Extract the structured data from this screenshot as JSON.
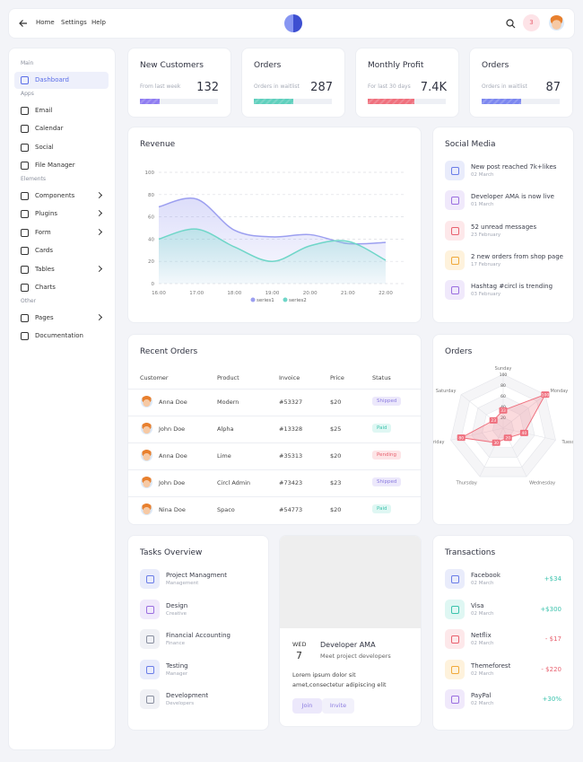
{
  "nav": {
    "links": [
      "Home",
      "Settings",
      "Help"
    ],
    "badge": "3"
  },
  "sidebar": {
    "sections": [
      {
        "heading": "Main",
        "items": [
          {
            "label": "Dashboard",
            "active": true
          }
        ]
      },
      {
        "heading": "Apps",
        "items": [
          {
            "label": "Email"
          },
          {
            "label": "Calendar"
          },
          {
            "label": "Social"
          },
          {
            "label": "File Manager"
          }
        ]
      },
      {
        "heading": "Elements",
        "items": [
          {
            "label": "Components",
            "submenu": true
          },
          {
            "label": "Plugins",
            "submenu": true
          },
          {
            "label": "Form",
            "submenu": true
          },
          {
            "label": "Cards"
          },
          {
            "label": "Tables",
            "submenu": true
          },
          {
            "label": "Charts"
          }
        ]
      },
      {
        "heading": "Other",
        "items": [
          {
            "label": "Pages",
            "submenu": true
          },
          {
            "label": "Documentation"
          }
        ]
      }
    ]
  },
  "stats": [
    {
      "title": "New Customers",
      "caption": "From last week",
      "value": "132",
      "progress": 25,
      "color": "#8f7cf2"
    },
    {
      "title": "Orders",
      "caption": "Orders in waitlist",
      "value": "287",
      "progress": 50,
      "color": "#5fd0bd"
    },
    {
      "title": "Monthly Profit",
      "caption": "For last 30 days",
      "value": "7.4K",
      "progress": 60,
      "color": "#f0707d"
    },
    {
      "title": "Orders",
      "caption": "Orders in waitlist",
      "value": "87",
      "progress": 50,
      "color": "#7c87f0"
    }
  ],
  "chart_data": [
    {
      "type": "area",
      "title": "Revenue",
      "x": [
        "16:00",
        "17:00",
        "18:00",
        "19:00",
        "20:00",
        "21:00",
        "22:00"
      ],
      "series": [
        {
          "name": "series1",
          "color": "#9c9ff0",
          "values": [
            69,
            76,
            48,
            42,
            44,
            36,
            37
          ]
        },
        {
          "name": "series2",
          "color": "#6fd6c8",
          "values": [
            40,
            49,
            33,
            20,
            34,
            38,
            21
          ]
        }
      ],
      "ylim": [
        0,
        100
      ],
      "yticks": [
        0,
        20,
        40,
        60,
        80,
        100
      ],
      "grid": true
    },
    {
      "type": "radar",
      "title": "Orders",
      "categories": [
        "Sunday",
        "Monday",
        "Tuesday",
        "Wednesday",
        "Thursday",
        "Friday",
        "Saturday"
      ],
      "values": [
        33,
        100,
        40,
        20,
        30,
        80,
        23
      ],
      "rlim": [
        0,
        100
      ],
      "rticks": [
        20,
        40,
        60,
        80,
        100
      ],
      "color": "#ef6f7d"
    }
  ],
  "social": {
    "title": "Social Media",
    "items": [
      {
        "text": "New post reached 7k+likes",
        "date": "02 March",
        "color": "#6b7de8",
        "bg": "#e9ecfb"
      },
      {
        "text": "Developer AMA is now live",
        "date": "01 March",
        "color": "#9b6fe0",
        "bg": "#f0e9fb"
      },
      {
        "text": "52 unread messages",
        "date": "23 February",
        "color": "#e8616f",
        "bg": "#fde8ea"
      },
      {
        "text": "2 new orders from shop page",
        "date": "17 February",
        "color": "#f0a93a",
        "bg": "#fef2dc"
      },
      {
        "text": "Hashtag #circl is trending",
        "date": "03 February",
        "color": "#9b6fe0",
        "bg": "#f0e9fb"
      }
    ]
  },
  "orders_table": {
    "title": "Recent Orders",
    "columns": [
      "Customer",
      "Product",
      "Invoice",
      "Price",
      "Status"
    ],
    "rows": [
      {
        "cells": [
          "Anna Doe",
          "Modern",
          "#53327",
          "$20",
          "Shipped"
        ],
        "status_color": "#8b7be0",
        "status_bg": "#ece8fb"
      },
      {
        "cells": [
          "John Doe",
          "Alpha",
          "#13328",
          "$25",
          "Paid"
        ],
        "status_color": "#3cc3ad",
        "status_bg": "#dff7f3"
      },
      {
        "cells": [
          "Anna Doe",
          "Lime",
          "#35313",
          "$20",
          "Pending"
        ],
        "status_color": "#e8616f",
        "status_bg": "#fde4e6"
      },
      {
        "cells": [
          "John Doe",
          "Circl Admin",
          "#73423",
          "$23",
          "Shipped"
        ],
        "status_color": "#8b7be0",
        "status_bg": "#ece8fb"
      },
      {
        "cells": [
          "Nina Doe",
          "Spaco",
          "#54773",
          "$20",
          "Paid"
        ],
        "status_color": "#3cc3ad",
        "status_bg": "#dff7f3"
      }
    ]
  },
  "tasks": {
    "title": "Tasks Overview",
    "items": [
      {
        "title": "Project Managment",
        "subtitle": "Management",
        "color": "#6b7de8",
        "bg": "#e9ecfb"
      },
      {
        "title": "Design",
        "subtitle": "Creative",
        "color": "#9b6fe0",
        "bg": "#f0e9fb"
      },
      {
        "title": "Financial Accounting",
        "subtitle": "Finance",
        "color": "#8a90a0",
        "bg": "#f0f1f5"
      },
      {
        "title": "Testing",
        "subtitle": "Manager",
        "color": "#6b7de8",
        "bg": "#e9ecfb"
      },
      {
        "title": "Development",
        "subtitle": "Developers",
        "color": "#8a90a0",
        "bg": "#f0f1f5"
      }
    ]
  },
  "event": {
    "day": "WED",
    "date": "7",
    "title": "Developer AMA",
    "subtitle": "Meet project developers",
    "text": "Lorem ipsum dolor sit amet,consectetur adipiscing elit",
    "buttons": [
      "Join",
      "Invite"
    ]
  },
  "transactions": {
    "title": "Transactions",
    "items": [
      {
        "name": "Facebook",
        "date": "02 March",
        "amount": "+$34",
        "color": "#3cc3ad",
        "icon": "#6b7de8",
        "bg": "#e9ecfb"
      },
      {
        "name": "Visa",
        "date": "02 March",
        "amount": "+$300",
        "color": "#3cc3ad",
        "icon": "#3cc3ad",
        "bg": "#dff7f3"
      },
      {
        "name": "Netflix",
        "date": "02 March",
        "amount": "- $17",
        "color": "#e8616f",
        "icon": "#e8616f",
        "bg": "#fde8ea"
      },
      {
        "name": "Themeforest",
        "date": "02 March",
        "amount": "- $220",
        "color": "#e8616f",
        "icon": "#f0a93a",
        "bg": "#fef2dc"
      },
      {
        "name": "PayPal",
        "date": "02 March",
        "amount": "+30%",
        "color": "#3cc3ad",
        "icon": "#9b6fe0",
        "bg": "#f0e9fb"
      }
    ]
  }
}
